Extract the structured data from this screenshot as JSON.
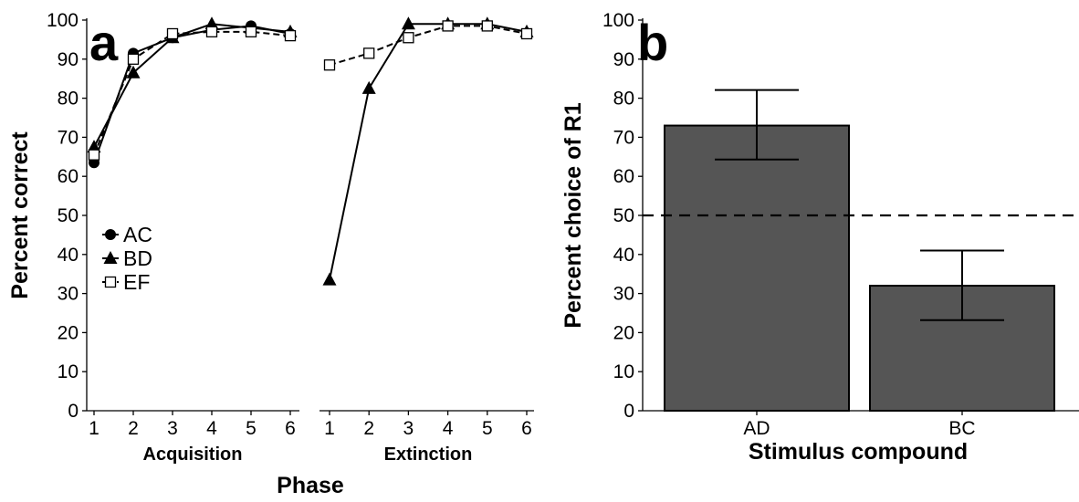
{
  "panels": {
    "a": "a",
    "b": "b"
  },
  "legend": {
    "ac": "AC",
    "bd": "BD",
    "ef": "EF"
  },
  "chart_data": [
    {
      "panel": "a",
      "type": "line",
      "ylabel": "Percent correct",
      "xlabel": "Phase",
      "ylim": [
        0,
        100
      ],
      "yticks": [
        0,
        10,
        20,
        30,
        40,
        50,
        60,
        70,
        80,
        90,
        100
      ],
      "legend_position": "left-middle",
      "groups": [
        {
          "name": "Acquisition",
          "x": [
            1,
            2,
            3,
            4,
            5,
            6
          ],
          "series": [
            {
              "name": "AC",
              "marker": "circle",
              "line": "solid",
              "values": [
                63.5,
                91.5,
                95.5,
                97.5,
                98.5,
                96.5
              ]
            },
            {
              "name": "BD",
              "marker": "triangle",
              "line": "solid",
              "values": [
                67.5,
                86.5,
                95.5,
                99,
                98,
                97
              ]
            },
            {
              "name": "EF",
              "marker": "open-square",
              "line": "dashed",
              "values": [
                65.5,
                90,
                96.5,
                97,
                97,
                96
              ]
            }
          ]
        },
        {
          "name": "Extinction",
          "x": [
            1,
            2,
            3,
            4,
            5,
            6
          ],
          "series": [
            {
              "name": "BD",
              "marker": "triangle",
              "line": "solid",
              "values": [
                33.5,
                82.5,
                99,
                99,
                99,
                97
              ]
            },
            {
              "name": "EF",
              "marker": "open-square",
              "line": "dashed",
              "values": [
                88.5,
                91.5,
                95.5,
                98.5,
                98.5,
                96.5
              ]
            }
          ]
        }
      ]
    },
    {
      "panel": "b",
      "type": "bar",
      "ylabel": "Percent choice of R1",
      "xlabel": "Stimulus compound",
      "categories": [
        "AD",
        "BC"
      ],
      "values": [
        73,
        32
      ],
      "error_low": [
        64.3,
        23.2
      ],
      "error_high": [
        82.1,
        41
      ],
      "reference_line": 50,
      "ylim": [
        0,
        100
      ],
      "yticks": [
        0,
        10,
        20,
        30,
        40,
        50,
        60,
        70,
        80,
        90,
        100
      ],
      "bar_color": "#555555"
    }
  ]
}
